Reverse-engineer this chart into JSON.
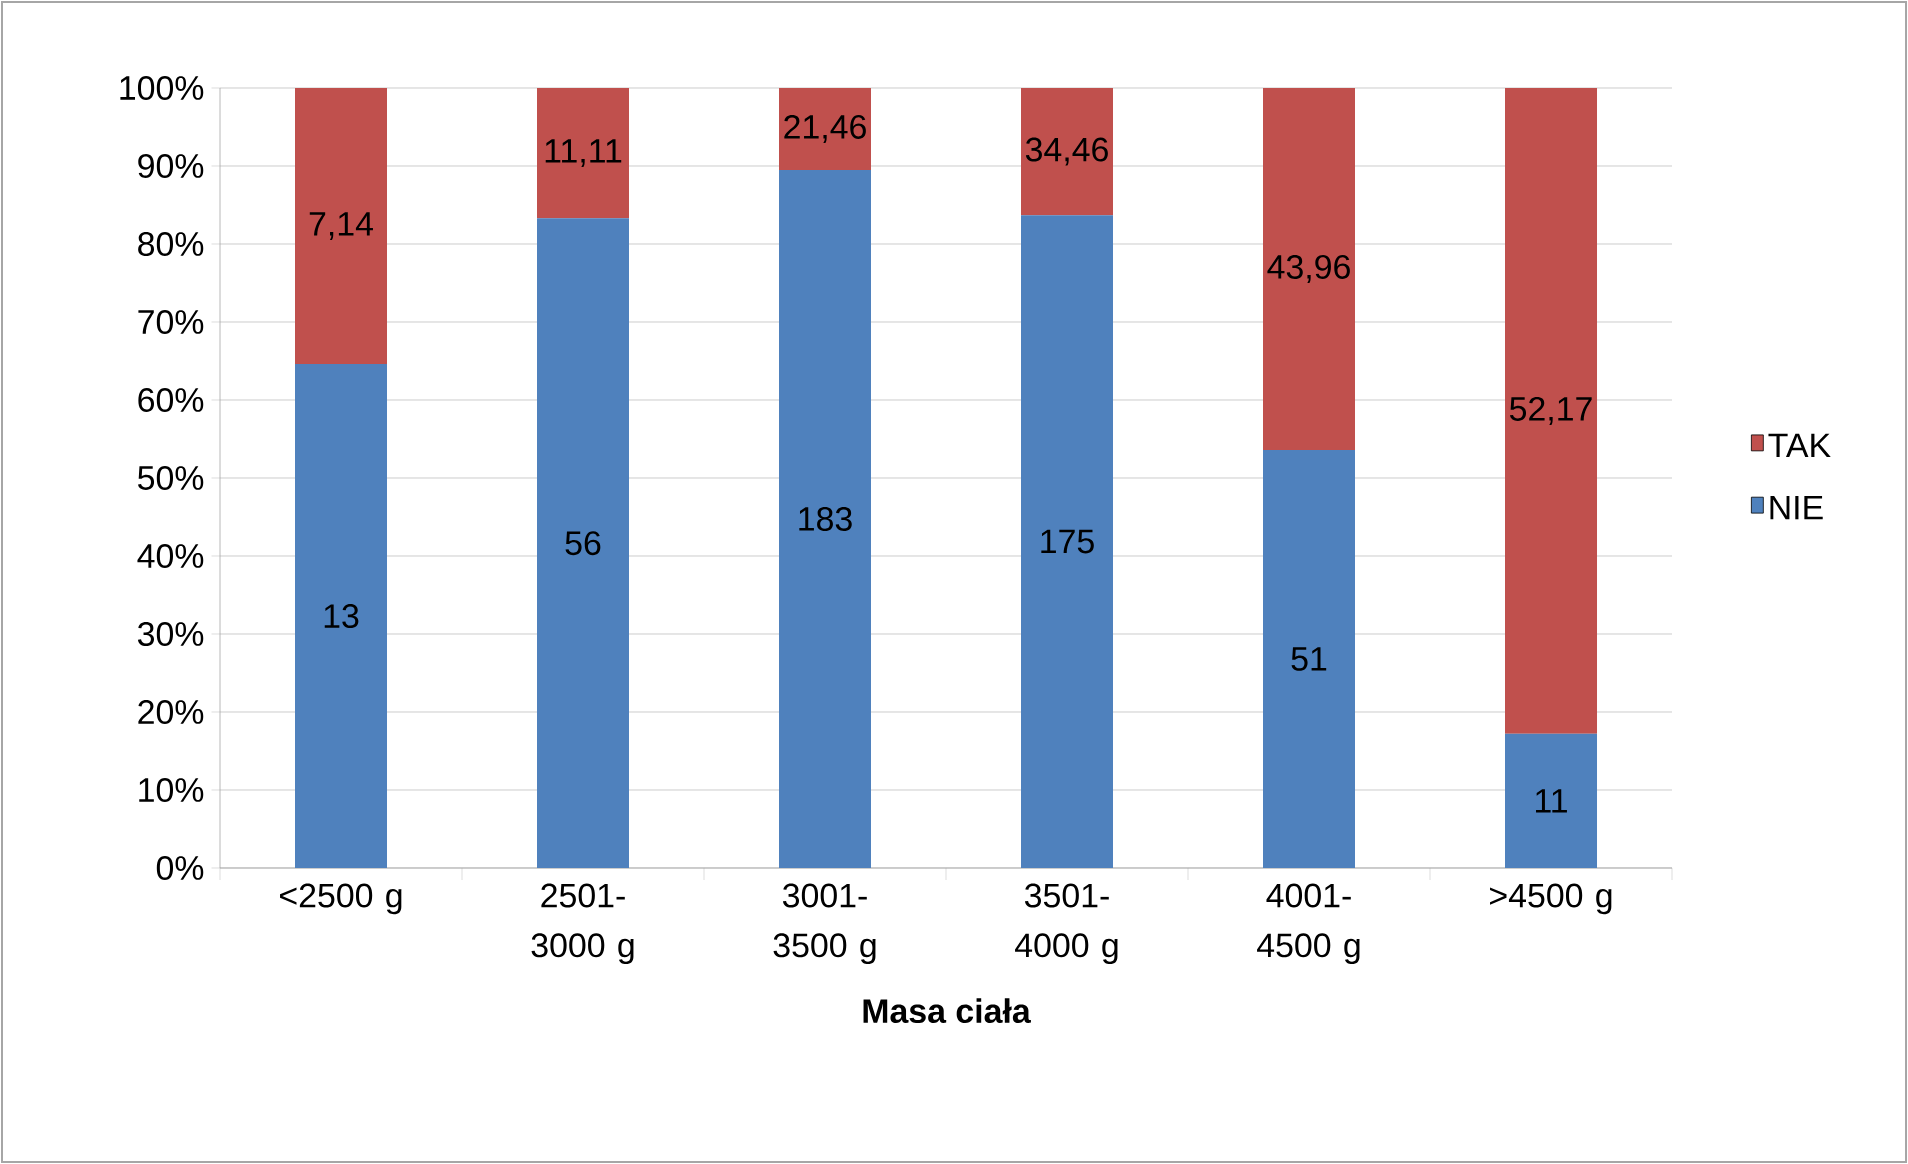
{
  "chart_data": {
    "type": "bar",
    "stacked": true,
    "xlabel": "Masa ciała",
    "categories": [
      "<2500 g",
      "2501-3000 g",
      "3001-3500 g",
      "3501-4000 g",
      "4001-4500 g",
      ">4500 g"
    ],
    "series": [
      {
        "name": "NIE",
        "color": "#4f81bd",
        "values": [
          64.6,
          83.3,
          89.5,
          83.7,
          53.6,
          17.2
        ]
      },
      {
        "name": "TAK",
        "color": "#c0504d",
        "values": [
          35.4,
          16.7,
          10.5,
          16.3,
          46.4,
          82.8
        ]
      }
    ],
    "annotations": [
      "13",
      "56",
      "183",
      "175",
      "51",
      "11",
      "7,14",
      "11,11",
      "21,46",
      "34,46",
      "43,96",
      "52,17"
    ],
    "ylim": [
      0,
      100
    ],
    "yticks": [
      {
        "value": 0,
        "label": "0%"
      },
      {
        "value": 10,
        "label": "10%"
      },
      {
        "value": 20,
        "label": "20%"
      },
      {
        "value": 30,
        "label": "30%"
      },
      {
        "value": 40,
        "label": "40%"
      },
      {
        "value": 50,
        "label": "50%"
      },
      {
        "value": 60,
        "label": "60%"
      },
      {
        "value": 70,
        "label": "70%"
      },
      {
        "value": 80,
        "label": "80%"
      },
      {
        "value": 90,
        "label": "90%"
      },
      {
        "value": 100,
        "label": "100%"
      }
    ],
    "grid": "y",
    "legend": "right"
  }
}
